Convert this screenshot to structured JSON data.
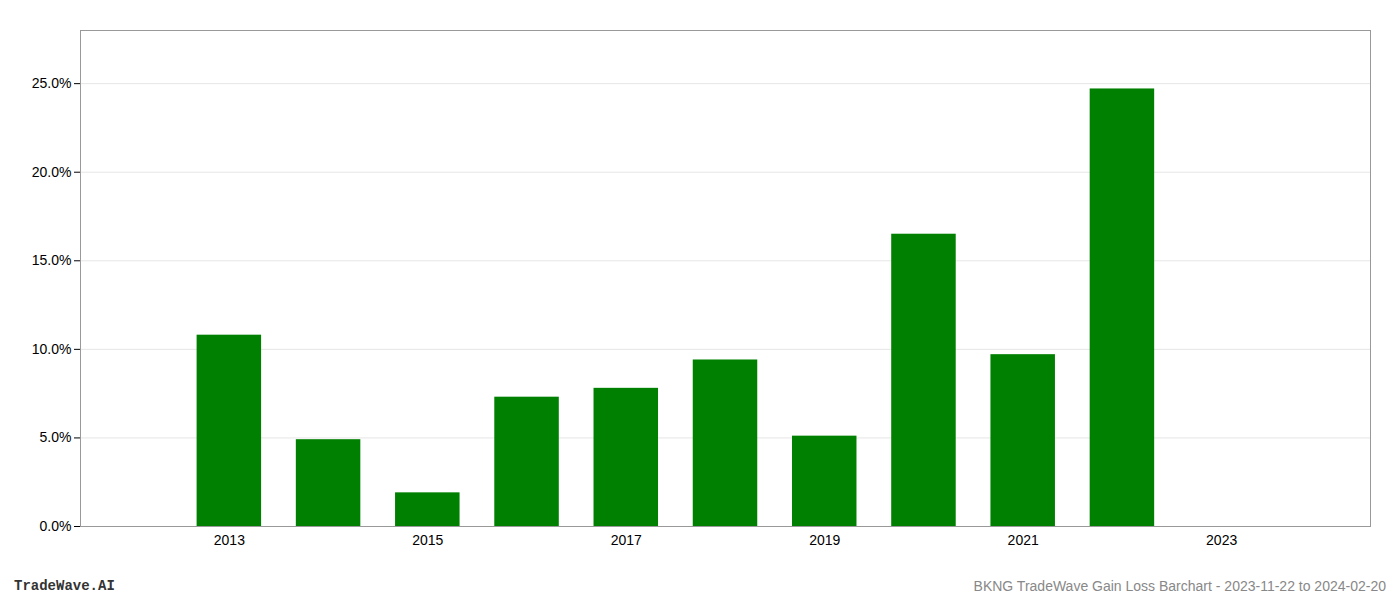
{
  "chart_data": {
    "type": "bar",
    "title": "BKNG TradeWave Gain Loss Barchart - 2023-11-22 to 2024-02-20",
    "annotations": [
      "TradeWave.AI"
    ],
    "x": [
      2013,
      2014,
      2015,
      2016,
      2017,
      2018,
      2019,
      2020,
      2021,
      2022,
      2023
    ],
    "values": [
      0.108,
      0.049,
      0.019,
      0.073,
      0.078,
      0.094,
      0.051,
      0.165,
      0.097,
      0.247,
      null
    ],
    "color": "#008000",
    "xlim": [
      2011.5,
      2024.5
    ],
    "xticks": [
      2013,
      2015,
      2017,
      2019,
      2021,
      2023
    ],
    "ylim": [
      0,
      0.28
    ],
    "yticks": [
      {
        "value": 0.0,
        "label": "0.0%"
      },
      {
        "value": 0.05,
        "label": "5.0%"
      },
      {
        "value": 0.1,
        "label": "10.0%"
      },
      {
        "value": 0.15,
        "label": "15.0%"
      },
      {
        "value": 0.2,
        "label": "20.0%"
      },
      {
        "value": 0.25,
        "label": "25.0%"
      }
    ],
    "grid": true
  }
}
